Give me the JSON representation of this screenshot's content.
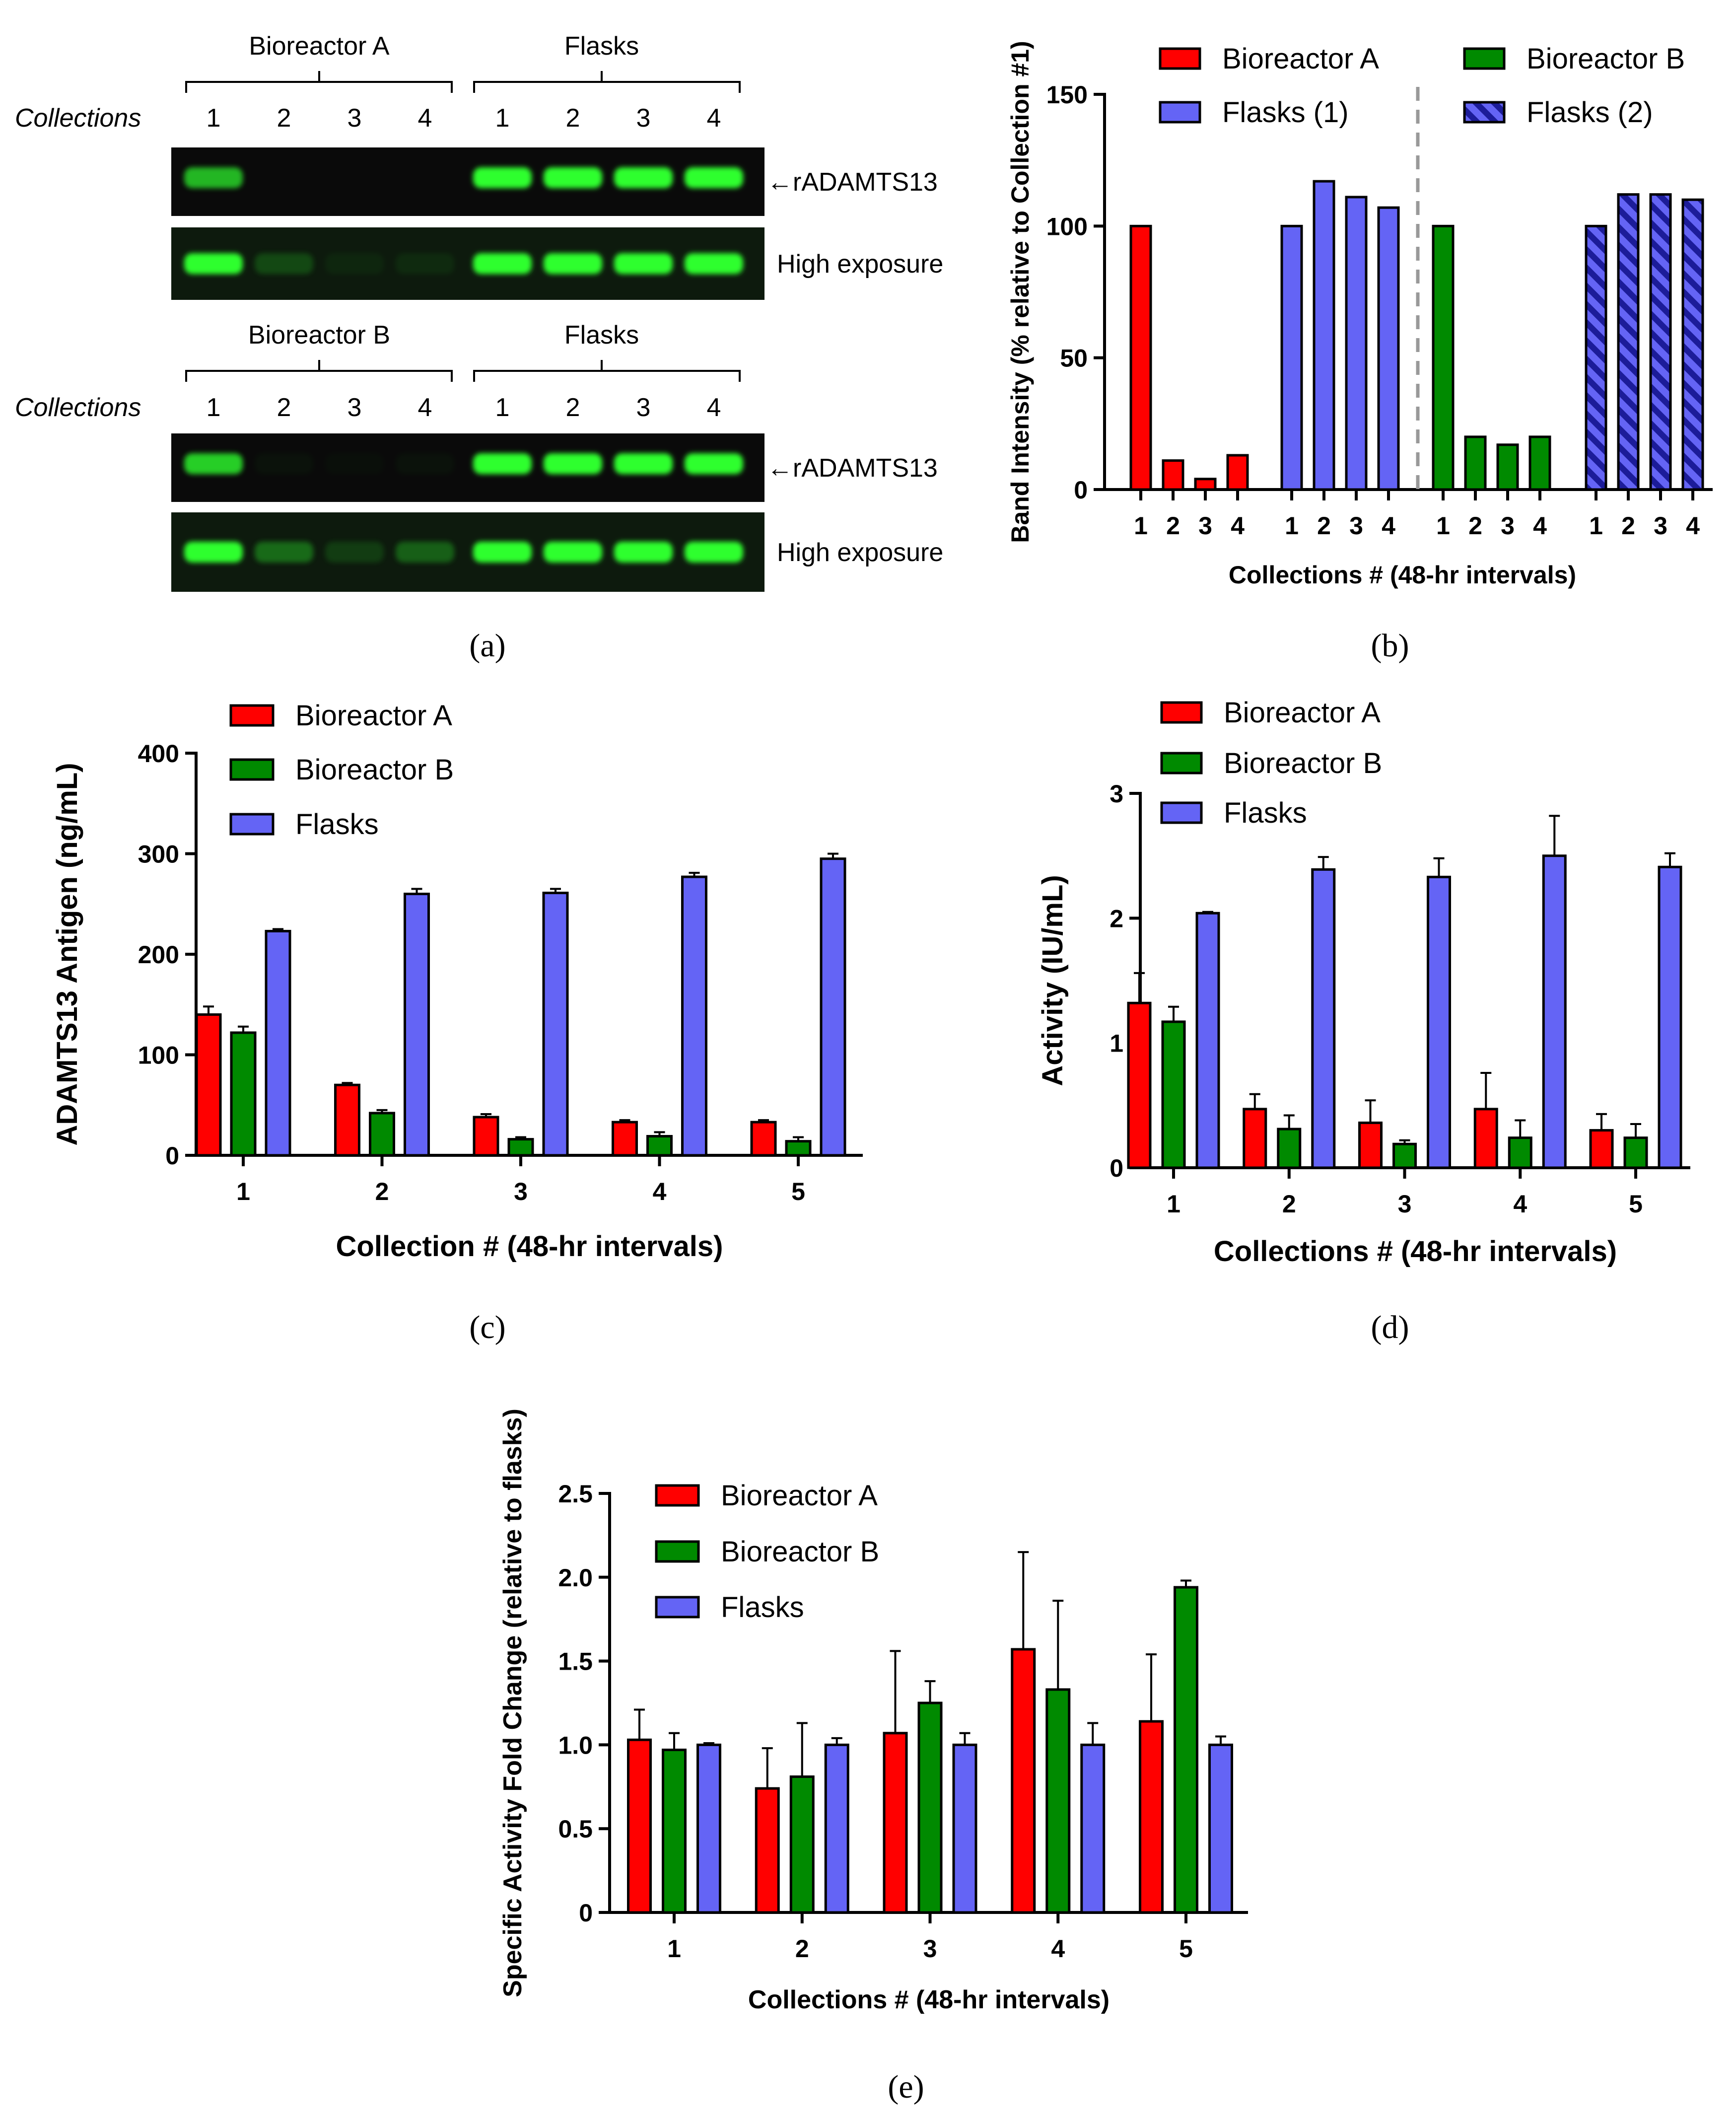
{
  "colors": {
    "bioreactor_a": "#ff0000",
    "bioreactor_b": "#008a00",
    "flasks": "#6464f5",
    "flasks2_hatch": "#1c1c99",
    "blot_bg": "#0a0a0a",
    "band_green": "#2dff2d"
  },
  "panel_labels": [
    "(a)",
    "(b)",
    "(c)",
    "(d)",
    "(e)"
  ],
  "panel_a": {
    "blots": [
      {
        "left_group": "Bioreactor A",
        "right_group": "Flasks",
        "row_label": "Collections",
        "lanes": [
          "1",
          "2",
          "3",
          "4",
          "1",
          "2",
          "3",
          "4"
        ],
        "strips": [
          {
            "label": "←rADAMTS13",
            "intensities": [
              0.7,
              0,
              0,
              0,
              1,
              1,
              1,
              1
            ]
          },
          {
            "label": "High exposure",
            "intensities": [
              1,
              0.2,
              0.05,
              0.07,
              1,
              1,
              1,
              1
            ]
          }
        ]
      },
      {
        "left_group": "Bioreactor B",
        "right_group": "Flasks",
        "row_label": "Collections",
        "lanes": [
          "1",
          "2",
          "3",
          "4",
          "1",
          "2",
          "3",
          "4"
        ],
        "strips": [
          {
            "label": "←rADAMTS13",
            "intensities": [
              0.8,
              0.03,
              0.02,
              0.03,
              1,
              1,
              1,
              1
            ]
          },
          {
            "label": "High exposure",
            "intensities": [
              1,
              0.35,
              0.15,
              0.3,
              1,
              1,
              1,
              1
            ]
          }
        ]
      }
    ]
  },
  "chart_data": [
    {
      "id": "b",
      "type": "bar",
      "ylabel": "Band Intensity (% relative to Collection #1)",
      "xlabel": "Collections # (48-hr intervals)",
      "ylim": [
        0,
        150
      ],
      "yticks": [
        0,
        50,
        100,
        150
      ],
      "legend": [
        {
          "name": "Bioreactor A",
          "color": "#ff0000"
        },
        {
          "name": "Bioreactor B",
          "color": "#008a00"
        },
        {
          "name": "Flasks (1)",
          "color": "#6464f5"
        },
        {
          "name": "Flasks (2)",
          "color": "#6464f5",
          "hatched": true
        }
      ],
      "groups": [
        {
          "name": "Bioreactor A",
          "color": "#ff0000",
          "categories": [
            "1",
            "2",
            "3",
            "4"
          ],
          "values": [
            100,
            11,
            4,
            13
          ]
        },
        {
          "name": "Flasks (1)",
          "color": "#6464f5",
          "categories": [
            "1",
            "2",
            "3",
            "4"
          ],
          "values": [
            100,
            117,
            111,
            107
          ]
        },
        {
          "name": "Bioreactor B",
          "color": "#008a00",
          "categories": [
            "1",
            "2",
            "3",
            "4"
          ],
          "values": [
            100,
            20,
            17,
            20
          ]
        },
        {
          "name": "Flasks (2)",
          "color": "#6464f5",
          "hatched": true,
          "categories": [
            "1",
            "2",
            "3",
            "4"
          ],
          "values": [
            100,
            112,
            112,
            110
          ]
        }
      ],
      "divider_after_group": 1
    },
    {
      "id": "c",
      "type": "bar",
      "ylabel": "ADAMTS13 Antigen (ng/mL)",
      "xlabel": "Collection # (48-hr intervals)",
      "ylim": [
        0,
        400
      ],
      "yticks": [
        0,
        100,
        200,
        300,
        400
      ],
      "categories": [
        "1",
        "2",
        "3",
        "4",
        "5"
      ],
      "series": [
        {
          "name": "Bioreactor A",
          "color": "#ff0000",
          "values": [
            140,
            70,
            38,
            33,
            33
          ],
          "errors": [
            8,
            2,
            3,
            2,
            2
          ]
        },
        {
          "name": "Bioreactor B",
          "color": "#008a00",
          "values": [
            122,
            42,
            16,
            19,
            14
          ],
          "errors": [
            6,
            3,
            2,
            4,
            4
          ]
        },
        {
          "name": "Flasks",
          "color": "#6464f5",
          "values": [
            223,
            260,
            261,
            277,
            295
          ],
          "errors": [
            2,
            5,
            4,
            4,
            5
          ]
        }
      ]
    },
    {
      "id": "d",
      "type": "bar",
      "ylabel": "Activity (IU/mL)",
      "xlabel": "Collections # (48-hr intervals)",
      "ylim": [
        0,
        3
      ],
      "yticks": [
        0,
        1,
        2,
        3
      ],
      "categories": [
        "1",
        "2",
        "3",
        "4",
        "5"
      ],
      "series": [
        {
          "name": "Bioreactor A",
          "color": "#ff0000",
          "values": [
            1.32,
            0.47,
            0.36,
            0.47,
            0.3
          ],
          "errors": [
            0.24,
            0.12,
            0.18,
            0.29,
            0.13
          ]
        },
        {
          "name": "Bioreactor B",
          "color": "#008a00",
          "values": [
            1.17,
            0.31,
            0.19,
            0.24,
            0.24
          ],
          "errors": [
            0.12,
            0.11,
            0.03,
            0.14,
            0.11
          ]
        },
        {
          "name": "Flasks",
          "color": "#6464f5",
          "values": [
            2.04,
            2.39,
            2.33,
            2.5,
            2.41
          ],
          "errors": [
            0.01,
            0.1,
            0.15,
            0.32,
            0.11
          ]
        }
      ]
    },
    {
      "id": "e",
      "type": "bar",
      "ylabel": "Specific Activity Fold Change (relative to flasks)",
      "xlabel": "Collections # (48-hr intervals)",
      "ylim": [
        0,
        2.5
      ],
      "yticks": [
        0,
        0.5,
        1.0,
        1.5,
        2.0,
        2.5
      ],
      "ytick_labels": [
        "0",
        "0.5",
        "1.0",
        "1.5",
        "2.0",
        "2.5"
      ],
      "categories": [
        "1",
        "2",
        "3",
        "4",
        "5"
      ],
      "series": [
        {
          "name": "Bioreactor A",
          "color": "#ff0000",
          "values": [
            1.03,
            0.74,
            1.07,
            1.57,
            1.14
          ],
          "errors": [
            0.18,
            0.24,
            0.49,
            0.58,
            0.4
          ]
        },
        {
          "name": "Bioreactor B",
          "color": "#008a00",
          "values": [
            0.97,
            0.81,
            1.25,
            1.33,
            1.94
          ],
          "errors": [
            0.1,
            0.32,
            0.13,
            0.53,
            0.04
          ]
        },
        {
          "name": "Flasks",
          "color": "#6464f5",
          "values": [
            1.0,
            1.0,
            1.0,
            1.0,
            1.0
          ],
          "errors": [
            0.01,
            0.04,
            0.07,
            0.13,
            0.05
          ]
        }
      ]
    }
  ]
}
